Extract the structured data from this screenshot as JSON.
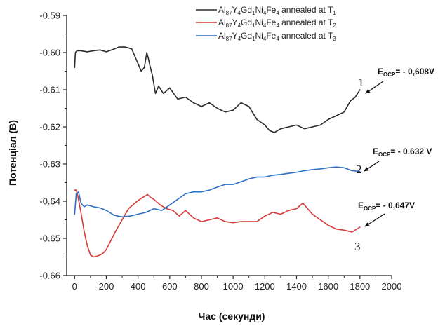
{
  "chart_data": {
    "type": "line",
    "xlabel": "Час (секунди)",
    "ylabel": "Потенціал (В)",
    "xlim": [
      -50,
      2000
    ],
    "ylim": [
      -0.66,
      -0.59
    ],
    "xticks": [
      "0",
      "200",
      "400",
      "600",
      "800",
      "1000",
      "1200",
      "1400",
      "1600",
      "1800",
      "2000"
    ],
    "yticks": [
      "-0.66",
      "-0.65",
      "-0.64",
      "-0.63",
      "-0.62",
      "-0.61",
      "-0.60",
      "-0.59"
    ],
    "legend_position": "top-right",
    "series": [
      {
        "name": "Al87Y4Gd1Ni4Fe4 annealed at T1",
        "legend": {
          "pre": "Al",
          "s1": "87",
          "m1": "Y",
          "s2": "4",
          "m2": "Gd",
          "s3": "1",
          "m3": "Ni",
          "s4": "4",
          "m4": "Fe",
          "s5": "4",
          "post": " annealed at T",
          "s6": "1"
        },
        "color": "#2b2b2b",
        "x": [
          0,
          5,
          15,
          40,
          80,
          120,
          160,
          200,
          240,
          280,
          320,
          360,
          390,
          420,
          440,
          455,
          465,
          475,
          490,
          510,
          530,
          560,
          600,
          650,
          700,
          750,
          800,
          850,
          900,
          950,
          1000,
          1050,
          1100,
          1150,
          1200,
          1230,
          1260,
          1300,
          1350,
          1400,
          1450,
          1500,
          1550,
          1600,
          1650,
          1700,
          1740,
          1770,
          1800
        ],
        "values": [
          -0.604,
          -0.6,
          -0.5995,
          -0.5995,
          -0.5998,
          -0.5995,
          -0.5993,
          -0.5998,
          -0.5992,
          -0.5985,
          -0.5985,
          -0.599,
          -0.602,
          -0.605,
          -0.604,
          -0.6,
          -0.6015,
          -0.6035,
          -0.606,
          -0.611,
          -0.609,
          -0.611,
          -0.6095,
          -0.6125,
          -0.612,
          -0.6135,
          -0.6145,
          -0.6135,
          -0.615,
          -0.616,
          -0.6155,
          -0.6135,
          -0.6145,
          -0.618,
          -0.6195,
          -0.621,
          -0.6215,
          -0.6205,
          -0.62,
          -0.6195,
          -0.6205,
          -0.62,
          -0.6195,
          -0.618,
          -0.617,
          -0.616,
          -0.613,
          -0.612,
          -0.61
        ]
      },
      {
        "name": "Al87Y4Gd1Ni4Fe4 annealed at T2",
        "legend": {
          "pre": "Al",
          "s1": "87",
          "m1": "Y",
          "s2": "4",
          "m2": "Gd",
          "s3": "1",
          "m3": "Ni",
          "s4": "4",
          "m4": "Fe",
          "s5": "4",
          "post": " annealed at T",
          "s6": "2"
        },
        "color": "#d93a3a",
        "x": [
          0,
          10,
          20,
          40,
          60,
          80,
          100,
          120,
          140,
          160,
          180,
          200,
          230,
          260,
          300,
          340,
          380,
          420,
          460,
          480,
          500,
          540,
          580,
          620,
          660,
          700,
          750,
          800,
          850,
          900,
          950,
          1000,
          1050,
          1100,
          1150,
          1200,
          1250,
          1300,
          1350,
          1400,
          1440,
          1470,
          1500,
          1550,
          1600,
          1650,
          1700,
          1750,
          1780,
          1800
        ],
        "values": [
          -0.637,
          -0.637,
          -0.6385,
          -0.643,
          -0.648,
          -0.652,
          -0.6545,
          -0.655,
          -0.6548,
          -0.6545,
          -0.654,
          -0.653,
          -0.6505,
          -0.648,
          -0.645,
          -0.642,
          -0.6405,
          -0.6392,
          -0.6382,
          -0.639,
          -0.6395,
          -0.641,
          -0.642,
          -0.6425,
          -0.644,
          -0.6425,
          -0.6445,
          -0.6455,
          -0.645,
          -0.6445,
          -0.6455,
          -0.6458,
          -0.6455,
          -0.6455,
          -0.6455,
          -0.644,
          -0.643,
          -0.6435,
          -0.6425,
          -0.642,
          -0.6405,
          -0.642,
          -0.6435,
          -0.645,
          -0.6465,
          -0.6475,
          -0.6478,
          -0.6483,
          -0.6475,
          -0.647
        ]
      },
      {
        "name": "Al87Y4Gd1Ni4Fe4 annealed at T3",
        "legend": {
          "pre": "Al",
          "s1": "87",
          "m1": "Y",
          "s2": "4",
          "m2": "Gd",
          "s3": "1",
          "m3": "Ni",
          "s4": "4",
          "m4": "Fe",
          "s5": "4",
          "post": " annealed at T",
          "s6": "3"
        },
        "color": "#2f6fc4",
        "x": [
          0,
          10,
          25,
          40,
          60,
          80,
          120,
          160,
          200,
          250,
          300,
          350,
          400,
          450,
          500,
          550,
          600,
          650,
          700,
          750,
          800,
          850,
          900,
          950,
          1000,
          1050,
          1100,
          1150,
          1200,
          1250,
          1300,
          1350,
          1400,
          1450,
          1500,
          1550,
          1600,
          1650,
          1700,
          1750,
          1800
        ],
        "values": [
          -0.6435,
          -0.638,
          -0.6375,
          -0.6405,
          -0.6415,
          -0.641,
          -0.6415,
          -0.6418,
          -0.6425,
          -0.6438,
          -0.6442,
          -0.644,
          -0.6435,
          -0.643,
          -0.642,
          -0.6425,
          -0.641,
          -0.6395,
          -0.638,
          -0.6375,
          -0.6375,
          -0.637,
          -0.6362,
          -0.6355,
          -0.6355,
          -0.6348,
          -0.634,
          -0.6335,
          -0.6335,
          -0.633,
          -0.6328,
          -0.6325,
          -0.6322,
          -0.6318,
          -0.6315,
          -0.6313,
          -0.631,
          -0.6308,
          -0.631,
          -0.6318,
          -0.632
        ]
      }
    ],
    "annotations": [
      {
        "number": "1",
        "e_pre": "E",
        "e_sub": "OCP",
        "value": "= - 0,608V"
      },
      {
        "number": "2",
        "e_pre": "E",
        "e_sub": "OCP",
        "value": "= - 0.632 V"
      },
      {
        "number": "3",
        "e_pre": "E",
        "e_sub": "OCP",
        "value": "= - 0,647V"
      }
    ]
  }
}
